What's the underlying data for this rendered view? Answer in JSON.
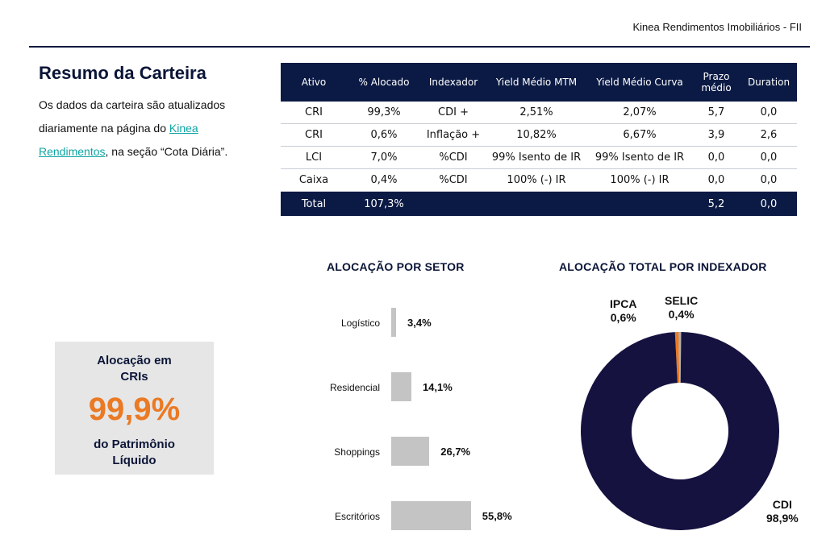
{
  "header": {
    "doc_title": "Kinea Rendimentos Imobiliários - FII"
  },
  "intro": {
    "title": "Resumo da Carteira",
    "text_before_link": "Os dados da carteira são atualizados diariamente na página do ",
    "link_text": "Kinea Rendimentos",
    "text_after_link": ", na seção “Cota Diária”."
  },
  "summary_table": {
    "headers": [
      "Ativo",
      "% Alocado",
      "Indexador",
      "Yield Médio MTM",
      "Yield Médio Curva",
      "Prazo médio",
      "Duration"
    ],
    "rows": [
      [
        "CRI",
        "99,3%",
        "CDI +",
        "2,51%",
        "2,07%",
        "5,7",
        "0,0"
      ],
      [
        "CRI",
        "0,6%",
        "Inflação +",
        "10,82%",
        "6,67%",
        "3,9",
        "2,6"
      ],
      [
        "LCI",
        "7,0%",
        "%CDI",
        "99% Isento de IR",
        "99% Isento de IR",
        "0,0",
        "0,0"
      ],
      [
        "Caixa",
        "0,4%",
        "%CDI",
        "100% (-) IR",
        "100% (-) IR",
        "0,0",
        "0,0"
      ]
    ],
    "total": [
      "Total",
      "107,3%",
      "",
      "",
      "",
      "5,2",
      "0,0"
    ]
  },
  "kpi": {
    "label_top": "Alocação em CRIs",
    "value": "99,9%",
    "label_bottom": "do Patrimônio Líquido"
  },
  "colors": {
    "navy": "#0b1a44",
    "orange": "#ea7a24",
    "bar_gray": "#c4c4c4",
    "selic_gray": "#b0b0b0",
    "teal_link": "#10a4a4"
  },
  "chart_data": [
    {
      "type": "bar",
      "title": "ALOCAÇÃO POR SETOR",
      "orientation": "horizontal",
      "categories": [
        "Logístico",
        "Residencial",
        "Shoppings",
        "Escritórios"
      ],
      "values": [
        3.4,
        14.1,
        26.7,
        55.8
      ],
      "value_labels": [
        "3,4%",
        "14,1%",
        "26,7%",
        "55,8%"
      ],
      "grid": false
    },
    {
      "type": "pie",
      "style": "donut",
      "title": "ALOCAÇÃO TOTAL POR INDEXADOR",
      "slices": [
        {
          "name": "CDI",
          "value": 98.9,
          "label": "98,9%",
          "color": "#15123f"
        },
        {
          "name": "IPCA",
          "value": 0.6,
          "label": "0,6%",
          "color": "#ea7a24"
        },
        {
          "name": "SELIC",
          "value": 0.4,
          "label": "0,4%",
          "color": "#b0b0b0"
        }
      ]
    }
  ]
}
